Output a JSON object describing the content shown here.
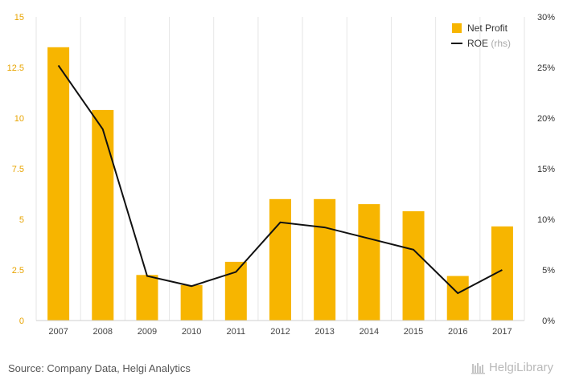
{
  "chart_data": {
    "type": "bar",
    "categories": [
      "2007",
      "2008",
      "2009",
      "2010",
      "2011",
      "2012",
      "2013",
      "2014",
      "2015",
      "2016",
      "2017"
    ],
    "series": [
      {
        "name": "Net Profit",
        "type": "bar",
        "axis": "left",
        "color": "#F7B500",
        "values": [
          13.5,
          10.4,
          2.25,
          1.75,
          2.9,
          6.0,
          6.0,
          5.75,
          5.4,
          2.2,
          4.65
        ]
      },
      {
        "name": "ROE",
        "legend_suffix": "(rhs)",
        "type": "line",
        "axis": "right",
        "color": "#111111",
        "values": [
          25.2,
          18.9,
          4.4,
          3.4,
          4.8,
          9.7,
          9.2,
          8.1,
          7.0,
          2.7,
          5.0
        ]
      }
    ],
    "y_left": {
      "ylim": [
        0,
        15
      ],
      "ticks": [
        "0",
        "2.5",
        "5",
        "7.5",
        "10",
        "12.5",
        "15"
      ],
      "tick_values": [
        0,
        2.5,
        5,
        7.5,
        10,
        12.5,
        15
      ],
      "color": "#E8A400"
    },
    "y_right": {
      "ylim": [
        0,
        30
      ],
      "ticks": [
        "0%",
        "5%",
        "10%",
        "15%",
        "20%",
        "25%",
        "30%"
      ],
      "tick_values": [
        0,
        5,
        10,
        15,
        20,
        25,
        30
      ]
    },
    "legend_position": "top-right",
    "grid": "vertical"
  },
  "footer": {
    "source": "Source: Company Data, Helgi Analytics",
    "logo": "HelgiLibrary"
  }
}
